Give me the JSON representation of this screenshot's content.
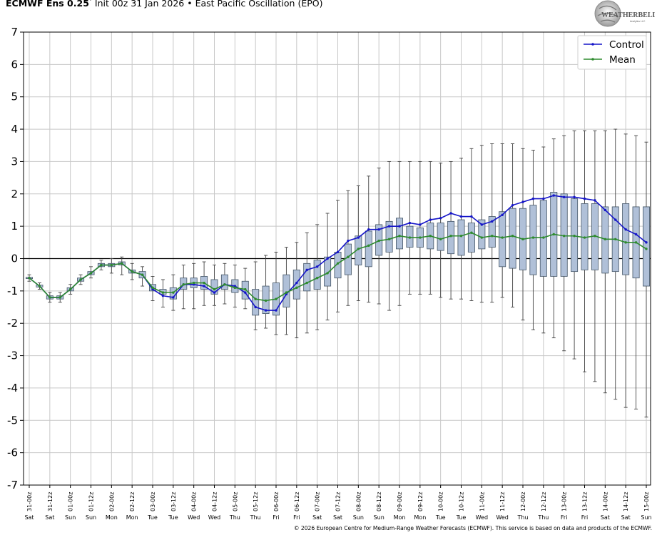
{
  "header": {
    "model": "ECMWF Ens 0.25",
    "degree": "°",
    "init": "Init 00z 31 Jan 2026",
    "separator": "•",
    "index_name": "East Pacific Oscillation (EPO)"
  },
  "logo": {
    "text": "WEATHERBELL",
    "sub": "Analytics LLC"
  },
  "footer": "© 2026 European Centre for Medium-Range Weather Forecasts (ECMWF). This service is based on data and products of the ECMWF.",
  "colors": {
    "control": "#1515c8",
    "mean": "#2e8b2e",
    "box": "#b0c0d8",
    "box_edge": "#445566",
    "grid": "#c8c8c8"
  },
  "chart_data": {
    "type": "box",
    "ylim": [
      -7,
      7
    ],
    "y_ticks": [
      "7",
      "6",
      "5",
      "4",
      "3",
      "2",
      "1",
      "0",
      "-1",
      "-2",
      "-3",
      "-4",
      "-5",
      "-6",
      "-7"
    ],
    "grid": true,
    "legend_position": "top-right",
    "x_labels": [
      "31-00z",
      "31-12z",
      "01-00z",
      "01-12z",
      "02-00z",
      "02-12z",
      "03-00z",
      "03-12z",
      "04-00z",
      "04-12z",
      "05-00z",
      "05-12z",
      "06-00z",
      "06-12z",
      "07-00z",
      "07-12z",
      "08-00z",
      "08-12z",
      "09-00z",
      "09-12z",
      "10-00z",
      "10-12z",
      "11-00z",
      "11-12z",
      "12-00z",
      "12-12z",
      "13-00z",
      "13-12z",
      "14-00z",
      "14-12z",
      "15-00z"
    ],
    "day_labels": [
      "Sat",
      "Sat",
      "Sun",
      "Sun",
      "Mon",
      "Mon",
      "Tue",
      "Tue",
      "Wed",
      "Wed",
      "Thu",
      "Thu",
      "Fri",
      "Fri",
      "Sat",
      "Sat",
      "Sun",
      "Sun",
      "Mon",
      "Mon",
      "Tue",
      "Tue",
      "Wed",
      "Wed",
      "Thu",
      "Thu",
      "Fri",
      "Fri",
      "Sat",
      "Sat",
      "Sun"
    ],
    "series": [
      {
        "name": "Control",
        "values": [
          -0.6,
          -0.85,
          -1.2,
          -1.2,
          -0.95,
          -0.65,
          -0.45,
          -0.2,
          -0.2,
          -0.15,
          -0.4,
          -0.5,
          -0.95,
          -1.15,
          -1.2,
          -0.8,
          -0.8,
          -0.85,
          -1.05,
          -0.8,
          -0.85,
          -1.05,
          -1.5,
          -1.6,
          -1.6,
          -1.1,
          -0.75,
          -0.35,
          -0.25,
          0,
          0.2,
          0.55,
          0.65,
          0.9,
          0.9,
          1.0,
          1.0,
          1.1,
          1.05,
          1.2,
          1.25,
          1.4,
          1.3,
          1.3,
          1.05,
          1.15,
          1.35,
          1.65,
          1.75,
          1.85,
          1.85,
          1.95,
          1.9,
          1.9,
          1.85,
          1.8,
          1.5,
          1.2,
          0.9,
          0.75,
          0.5
        ]
      },
      {
        "name": "Mean",
        "values": [
          -0.6,
          -0.85,
          -1.2,
          -1.2,
          -0.95,
          -0.65,
          -0.45,
          -0.2,
          -0.2,
          -0.15,
          -0.4,
          -0.5,
          -0.9,
          -1.05,
          -1.05,
          -0.8,
          -0.75,
          -0.75,
          -0.95,
          -0.8,
          -0.9,
          -0.95,
          -1.25,
          -1.3,
          -1.25,
          -1.05,
          -0.9,
          -0.75,
          -0.6,
          -0.45,
          -0.15,
          0.05,
          0.3,
          0.4,
          0.55,
          0.6,
          0.7,
          0.65,
          0.65,
          0.7,
          0.6,
          0.7,
          0.7,
          0.8,
          0.65,
          0.7,
          0.65,
          0.7,
          0.6,
          0.65,
          0.65,
          0.75,
          0.7,
          0.7,
          0.65,
          0.7,
          0.6,
          0.6,
          0.5,
          0.5,
          0.3
        ]
      }
    ],
    "boxes": {
      "q1": [
        -0.62,
        -0.88,
        -1.25,
        -1.25,
        -1.0,
        -0.7,
        -0.5,
        -0.25,
        -0.25,
        -0.2,
        -0.45,
        -0.6,
        -1.0,
        -1.1,
        -1.25,
        -0.95,
        -0.9,
        -0.95,
        -1.1,
        -0.95,
        -1.05,
        -1.25,
        -1.75,
        -1.7,
        -1.75,
        -1.5,
        -1.25,
        -1.0,
        -0.95,
        -0.85,
        -0.6,
        -0.5,
        -0.2,
        -0.25,
        0.1,
        0.2,
        0.3,
        0.35,
        0.35,
        0.3,
        0.25,
        0.15,
        0.1,
        0.2,
        0.3,
        0.35,
        -0.25,
        -0.3,
        -0.35,
        -0.5,
        -0.55,
        -0.55,
        -0.55,
        -0.4,
        -0.35,
        -0.35,
        -0.45,
        -0.4,
        -0.5,
        -0.6,
        -0.85
      ],
      "q3": [
        -0.58,
        -0.82,
        -1.15,
        -1.15,
        -0.9,
        -0.6,
        -0.4,
        -0.15,
        -0.15,
        -0.1,
        -0.35,
        -0.4,
        -0.8,
        -0.95,
        -0.9,
        -0.6,
        -0.6,
        -0.55,
        -0.65,
        -0.5,
        -0.65,
        -0.7,
        -0.95,
        -0.85,
        -0.75,
        -0.5,
        -0.35,
        -0.15,
        -0.05,
        0.05,
        0.2,
        0.45,
        0.7,
        0.85,
        1.05,
        1.15,
        1.25,
        1.0,
        0.95,
        1.1,
        1.1,
        1.15,
        1.2,
        1.1,
        1.2,
        1.3,
        1.45,
        1.55,
        1.55,
        1.65,
        1.8,
        2.05,
        2.0,
        1.85,
        1.7,
        1.7,
        1.6,
        1.6,
        1.7,
        1.6,
        1.6
      ],
      "min": [
        -0.7,
        -0.95,
        -1.35,
        -1.35,
        -1.1,
        -0.8,
        -0.6,
        -0.35,
        -0.45,
        -0.5,
        -0.65,
        -0.85,
        -1.3,
        -1.5,
        -1.6,
        -1.55,
        -1.55,
        -1.45,
        -1.45,
        -1.4,
        -1.5,
        -1.55,
        -2.2,
        -2.15,
        -2.35,
        -2.35,
        -2.45,
        -2.3,
        -2.2,
        -1.9,
        -1.65,
        -1.45,
        -1.3,
        -1.35,
        -1.4,
        -1.6,
        -1.45,
        -1.1,
        -1.1,
        -1.1,
        -1.2,
        -1.25,
        -1.25,
        -1.3,
        -1.35,
        -1.35,
        -1.2,
        -1.5,
        -1.9,
        -2.2,
        -2.3,
        -2.45,
        -2.85,
        -3.1,
        -3.5,
        -3.8,
        -4.15,
        -4.35,
        -4.6,
        -4.65,
        -4.9
      ],
      "max": [
        -0.5,
        -0.75,
        -1.05,
        -1.05,
        -0.8,
        -0.5,
        -0.25,
        -0.05,
        0.0,
        0.05,
        -0.15,
        -0.25,
        -0.55,
        -0.65,
        -0.5,
        -0.2,
        -0.15,
        -0.1,
        -0.2,
        -0.15,
        -0.2,
        -0.3,
        -0.1,
        0.1,
        0.2,
        0.35,
        0.5,
        0.8,
        1.05,
        1.4,
        1.8,
        2.1,
        2.25,
        2.55,
        2.8,
        3.0,
        3.0,
        3.0,
        3.0,
        3.0,
        2.95,
        3.0,
        3.1,
        3.4,
        3.5,
        3.55,
        3.55,
        3.55,
        3.4,
        3.35,
        3.45,
        3.7,
        3.8,
        3.95,
        3.95,
        3.95,
        3.95,
        4.0,
        3.85,
        3.8,
        3.6
      ]
    }
  }
}
